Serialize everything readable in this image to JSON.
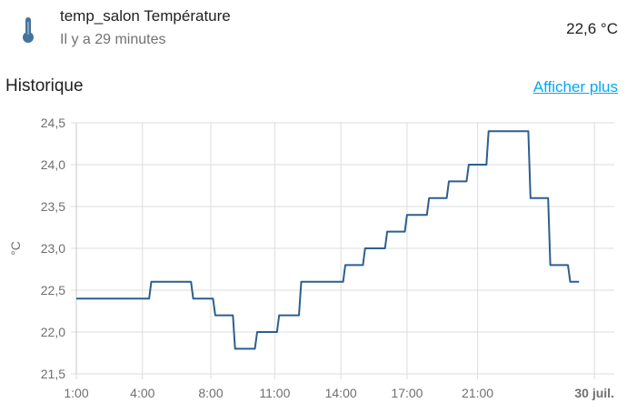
{
  "entity": {
    "icon": "thermometer-icon",
    "name": "temp_salon Température",
    "last_changed": "Il y a 29 minutes",
    "state": "22,6 °C"
  },
  "history": {
    "title": "Historique",
    "show_more": "Afficher plus"
  },
  "colors": {
    "icon": "#44739e",
    "line": "#2c5f8f",
    "link": "#03a9f4",
    "grid": "#dddddd"
  },
  "chart_data": {
    "type": "line",
    "ylabel": "°C",
    "ylim": [
      21.5,
      24.5
    ],
    "xlim": [
      1.0,
      25.4
    ],
    "grid": true,
    "y_ticks": [
      "24,5",
      "24,0",
      "23,5",
      "23,0",
      "22,5",
      "22,0",
      "21,5"
    ],
    "x_ticks": [
      {
        "label": "1:00",
        "x": 1,
        "bold": false
      },
      {
        "label": "4:00",
        "x": 4,
        "bold": false
      },
      {
        "label": "8:00",
        "x": 7.1,
        "bold": false
      },
      {
        "label": "11:00",
        "x": 10,
        "bold": false
      },
      {
        "label": "14:00",
        "x": 13,
        "bold": false
      },
      {
        "label": "17:00",
        "x": 16,
        "bold": false
      },
      {
        "label": "21:00",
        "x": 19.2,
        "bold": false
      },
      {
        "label": "30 juil.",
        "x": 24.5,
        "bold": true
      }
    ],
    "series": [
      {
        "points": [
          [
            1.0,
            22.4
          ],
          [
            4.3,
            22.4
          ],
          [
            4.4,
            22.6
          ],
          [
            6.2,
            22.6
          ],
          [
            6.3,
            22.4
          ],
          [
            7.2,
            22.4
          ],
          [
            7.3,
            22.2
          ],
          [
            8.1,
            22.2
          ],
          [
            8.2,
            21.8
          ],
          [
            9.1,
            21.8
          ],
          [
            9.2,
            22.0
          ],
          [
            10.1,
            22.0
          ],
          [
            10.2,
            22.2
          ],
          [
            11.1,
            22.2
          ],
          [
            11.2,
            22.6
          ],
          [
            13.1,
            22.6
          ],
          [
            13.2,
            22.8
          ],
          [
            14.0,
            22.8
          ],
          [
            14.1,
            23.0
          ],
          [
            15.0,
            23.0
          ],
          [
            15.1,
            23.2
          ],
          [
            15.9,
            23.2
          ],
          [
            16.0,
            23.4
          ],
          [
            16.9,
            23.4
          ],
          [
            17.0,
            23.6
          ],
          [
            17.8,
            23.6
          ],
          [
            17.9,
            23.8
          ],
          [
            18.7,
            23.8
          ],
          [
            18.8,
            24.0
          ],
          [
            19.6,
            24.0
          ],
          [
            19.7,
            24.4
          ],
          [
            21.5,
            24.4
          ],
          [
            21.6,
            23.6
          ],
          [
            22.4,
            23.6
          ],
          [
            22.5,
            22.8
          ],
          [
            23.3,
            22.8
          ],
          [
            23.4,
            22.6
          ],
          [
            23.8,
            22.6
          ]
        ]
      }
    ]
  }
}
